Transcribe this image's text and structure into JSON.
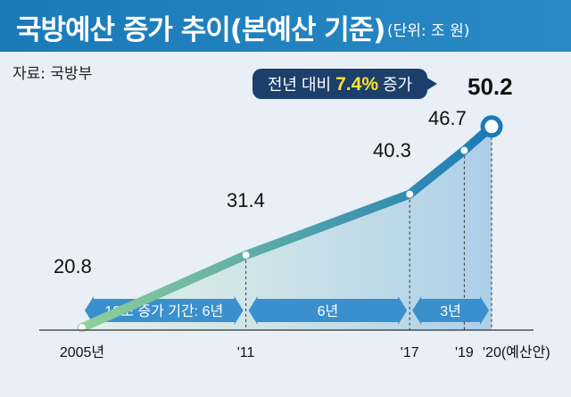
{
  "header": {
    "title": "국방예산 증가 추이(본예산 기준)",
    "unit": "(단위: 조 원)"
  },
  "source": "자료: 국방부",
  "callout": {
    "prefix": "전년 대비",
    "highlight": "7.4%",
    "suffix": "증가"
  },
  "colors": {
    "header": "#1a7ab8",
    "background": "#e8eff6",
    "line_start": "#8fd09a",
    "line_end": "#1a7ab8",
    "area": "#a9cde8",
    "arrow": "#3a90cc",
    "callout_bg": "#1c3f6b",
    "highlight": "#ffe22e"
  },
  "chart_data": {
    "type": "line",
    "title": "국방예산 증가 추이(본예산 기준)",
    "unit": "조 원",
    "x": [
      2005,
      2011,
      2017,
      2019,
      2020
    ],
    "values": [
      20.8,
      31.4,
      40.3,
      46.7,
      50.2
    ],
    "value_labels": [
      "20.8",
      "31.4",
      "40.3",
      "46.7",
      "50.2"
    ],
    "tick_labels": [
      "2005년",
      "'11",
      "'17",
      "'19",
      "'20(예산안)"
    ],
    "periods": [
      {
        "label": "10조 증가 기간: 6년",
        "from": 2005,
        "to": 2011
      },
      {
        "label": "6년",
        "from": 2011,
        "to": 2017
      },
      {
        "label": "3년",
        "from": 2017,
        "to": 2020
      }
    ],
    "ylim": [
      10,
      55
    ],
    "grid": false
  }
}
